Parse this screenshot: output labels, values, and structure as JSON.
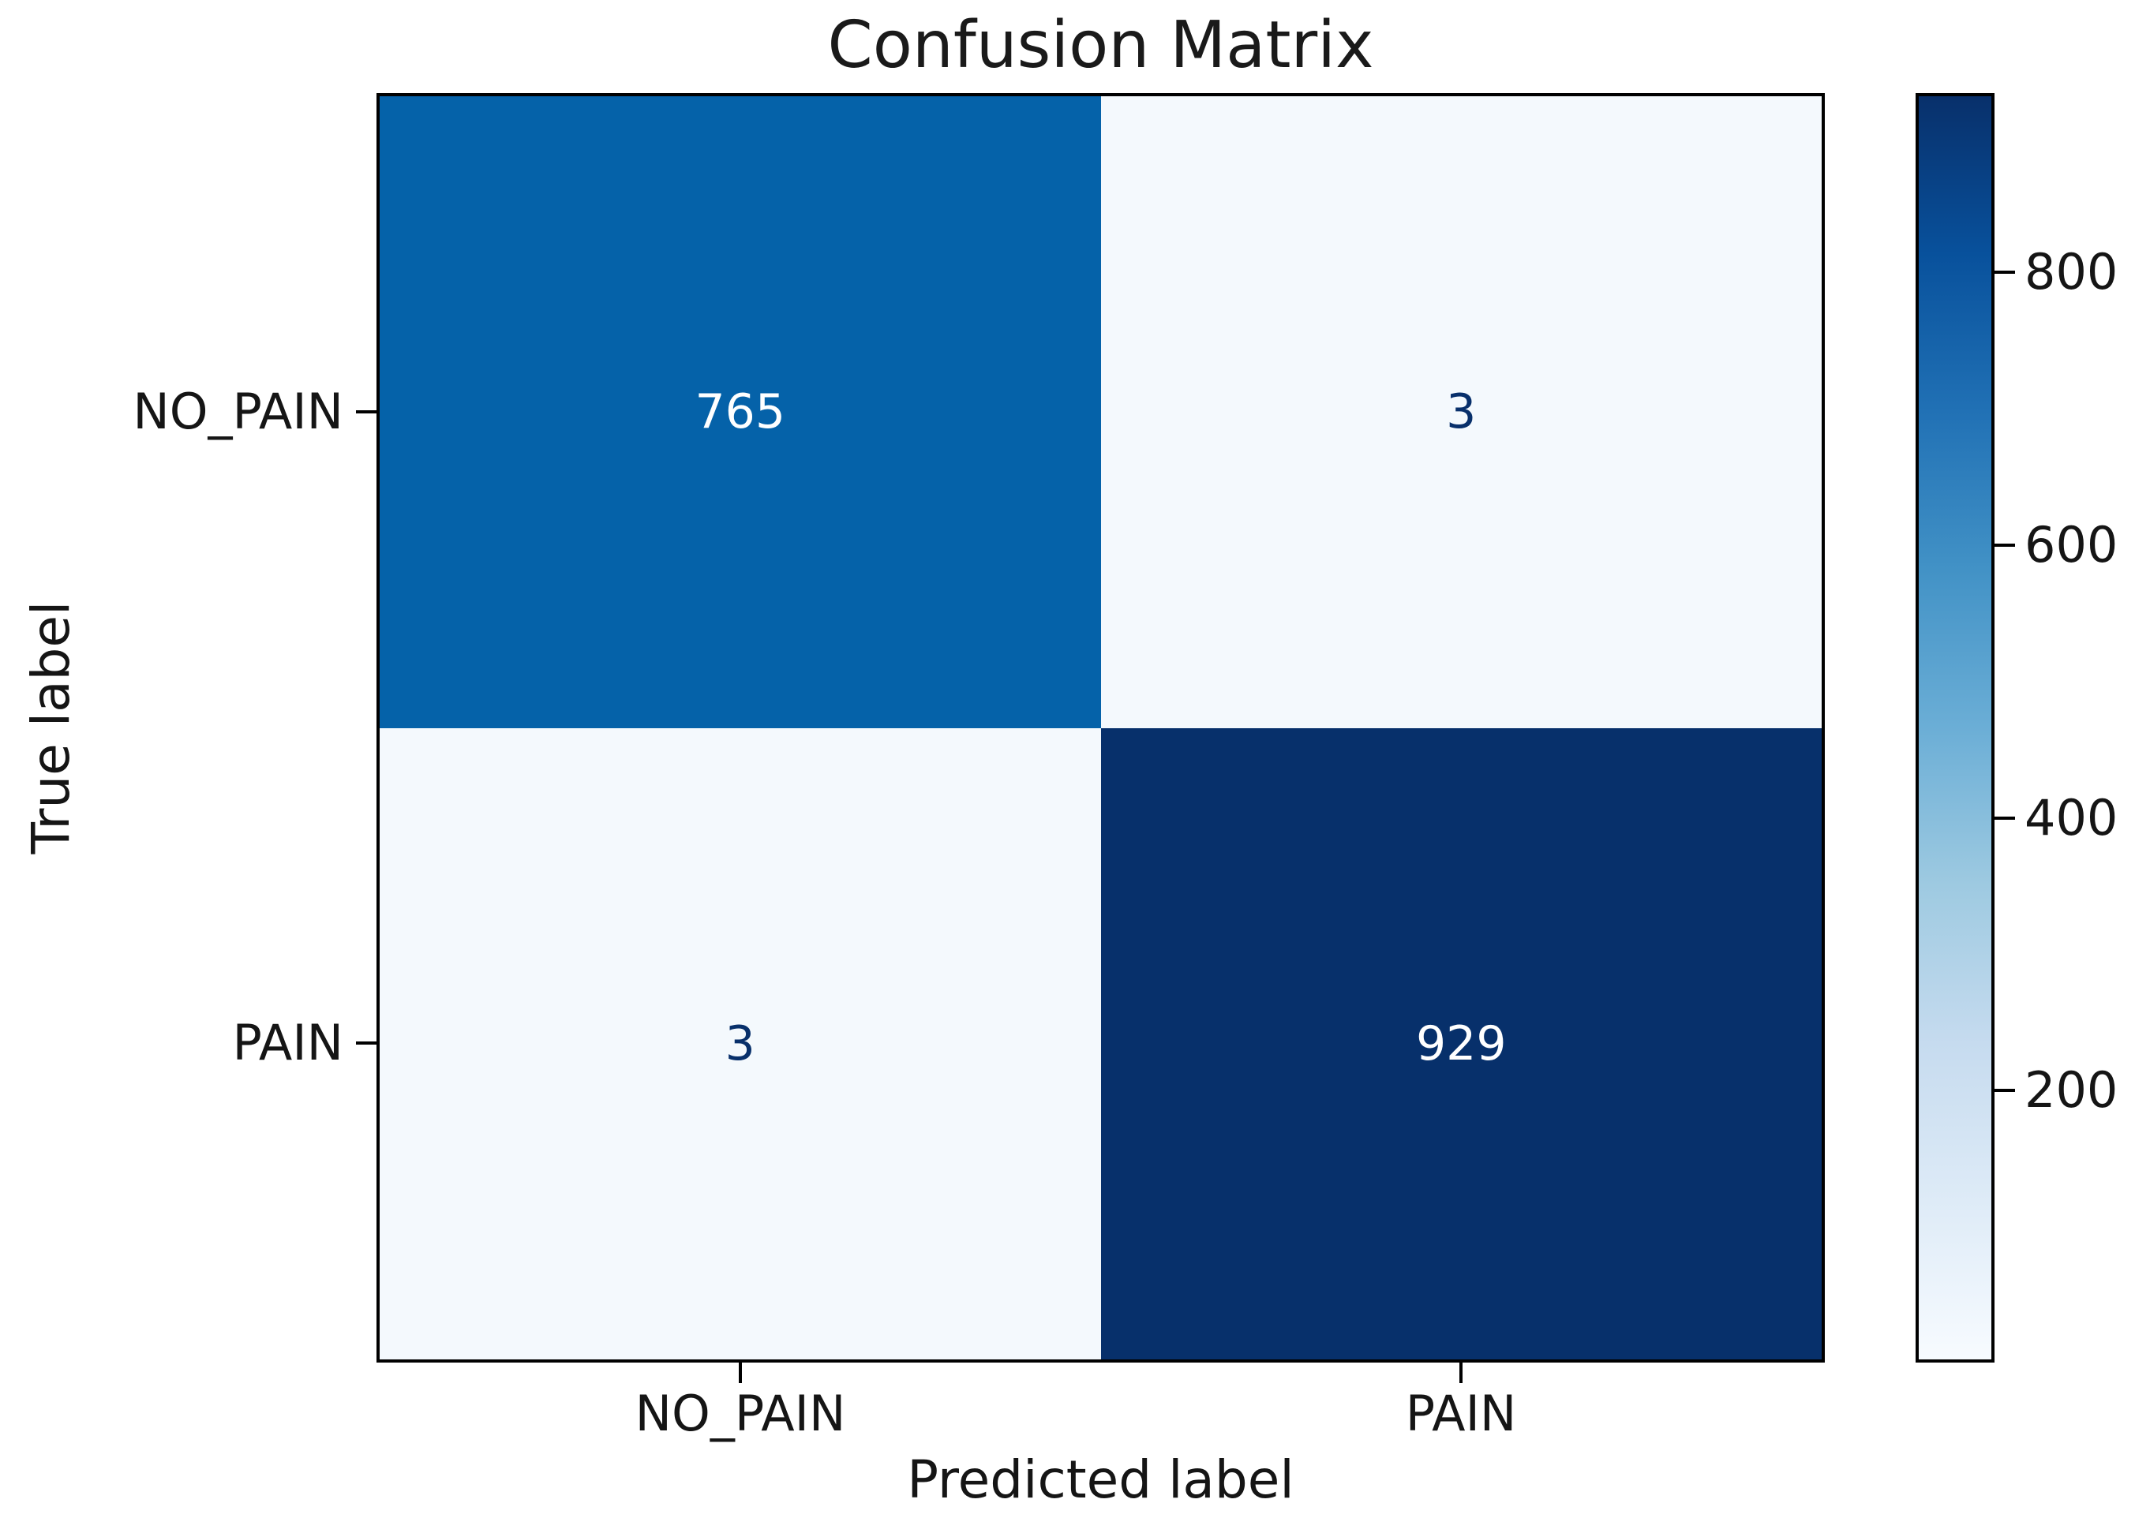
{
  "figure": {
    "background": "#ffffff",
    "text_color": "#151515",
    "spine_color": "#000000"
  },
  "chart_data": {
    "type": "heatmap",
    "title": "Confusion Matrix",
    "xlabel": "Predicted label",
    "ylabel": "True label",
    "x_categories": [
      "NO_PAIN",
      "PAIN"
    ],
    "y_categories": [
      "NO_PAIN",
      "PAIN"
    ],
    "matrix": [
      [
        765,
        3
      ],
      [
        3,
        929
      ]
    ],
    "vmin": 3,
    "vmax": 929,
    "colormap": "Blues",
    "grid": false,
    "legend_position": "right-colorbar",
    "colorbar_ticks": [
      200,
      400,
      600,
      800
    ],
    "cell_colors": [
      [
        "#0562a9",
        "#f4f9fd"
      ],
      [
        "#f4f9fd",
        "#07306b"
      ]
    ],
    "cell_text_colors": [
      [
        "#ffffff",
        "#08306b"
      ],
      [
        "#08306b",
        "#ffffff"
      ]
    ],
    "colorbar_gradient": [
      "#f7fbff",
      "#deebf7",
      "#c6dbef",
      "#9ecae1",
      "#6baed6",
      "#4292c6",
      "#2171b5",
      "#08519c",
      "#08306b"
    ]
  }
}
